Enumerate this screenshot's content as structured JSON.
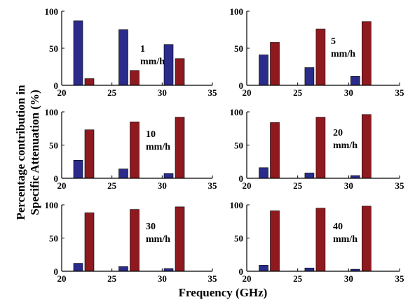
{
  "figure": {
    "xlabel": "Frequency (GHz)",
    "ylabel_line1": "Percentage contribution in",
    "ylabel_line2": "Specific Attenuation (%)"
  },
  "colors": {
    "series_a": "#2b2b8c",
    "series_b": "#8e1a1f"
  },
  "chart_data": [
    {
      "type": "bar",
      "annotation": [
        "1",
        "mm/h"
      ],
      "x": [
        22.2,
        26.7,
        31.2
      ],
      "series": [
        {
          "values": [
            87,
            75,
            55
          ]
        },
        {
          "values": [
            9,
            20,
            36
          ]
        }
      ],
      "xlim": [
        20,
        35
      ],
      "ylim": [
        0,
        100
      ],
      "xticks": [
        20,
        25,
        30,
        35
      ],
      "yticks": [
        0,
        50,
        100
      ],
      "grid": false
    },
    {
      "type": "bar",
      "annotation": [
        "5",
        "mm/h"
      ],
      "x": [
        22.2,
        26.7,
        31.2
      ],
      "series": [
        {
          "values": [
            41,
            24,
            12
          ]
        },
        {
          "values": [
            58,
            76,
            86
          ]
        }
      ],
      "xlim": [
        20,
        35
      ],
      "ylim": [
        0,
        100
      ],
      "xticks": [
        20,
        25,
        30,
        35
      ],
      "yticks": [
        0,
        50,
        100
      ],
      "grid": false
    },
    {
      "type": "bar",
      "annotation": [
        "10",
        "mm/h"
      ],
      "x": [
        22.2,
        26.7,
        31.2
      ],
      "series": [
        {
          "values": [
            27,
            14,
            7
          ]
        },
        {
          "values": [
            73,
            85,
            92
          ]
        }
      ],
      "xlim": [
        20,
        35
      ],
      "ylim": [
        0,
        100
      ],
      "xticks": [
        20,
        25,
        30,
        35
      ],
      "yticks": [
        0,
        50,
        100
      ],
      "grid": false
    },
    {
      "type": "bar",
      "annotation": [
        "20",
        "mm/h"
      ],
      "x": [
        22.2,
        26.7,
        31.2
      ],
      "series": [
        {
          "values": [
            16,
            8,
            4
          ]
        },
        {
          "values": [
            84,
            92,
            96
          ]
        }
      ],
      "xlim": [
        20,
        35
      ],
      "ylim": [
        0,
        100
      ],
      "xticks": [
        20,
        25,
        30,
        35
      ],
      "yticks": [
        0,
        50,
        100
      ],
      "grid": false
    },
    {
      "type": "bar",
      "annotation": [
        "30",
        "mm/h"
      ],
      "x": [
        22.2,
        26.7,
        31.2
      ],
      "series": [
        {
          "values": [
            12,
            7,
            4
          ]
        },
        {
          "values": [
            88,
            93,
            97
          ]
        }
      ],
      "xlim": [
        20,
        35
      ],
      "ylim": [
        0,
        100
      ],
      "xticks": [
        20,
        25,
        30,
        35
      ],
      "yticks": [
        0,
        50,
        100
      ],
      "grid": false
    },
    {
      "type": "bar",
      "annotation": [
        "40",
        "mm/h"
      ],
      "x": [
        22.2,
        26.7,
        31.2
      ],
      "series": [
        {
          "values": [
            9,
            5,
            3
          ]
        },
        {
          "values": [
            91,
            95,
            98
          ]
        }
      ],
      "xlim": [
        20,
        35
      ],
      "ylim": [
        0,
        100
      ],
      "xticks": [
        20,
        25,
        30,
        35
      ],
      "yticks": [
        0,
        50,
        100
      ],
      "grid": false
    }
  ]
}
